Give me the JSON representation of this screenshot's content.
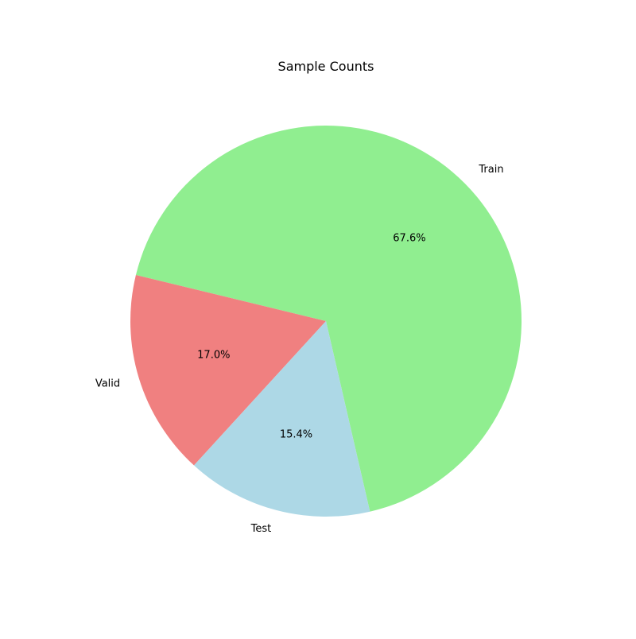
{
  "chart_data": {
    "type": "pie",
    "title": "Sample Counts",
    "categories": [
      "Train",
      "Valid",
      "Test"
    ],
    "values": [
      67.6,
      17.0,
      15.4
    ],
    "labels": [
      "67.6%",
      "17.0%",
      "15.4%"
    ],
    "colors": [
      "#90ee90",
      "#f08080",
      "#add8e6"
    ],
    "start_angle_deg": -77,
    "direction": "counterclockwise"
  }
}
